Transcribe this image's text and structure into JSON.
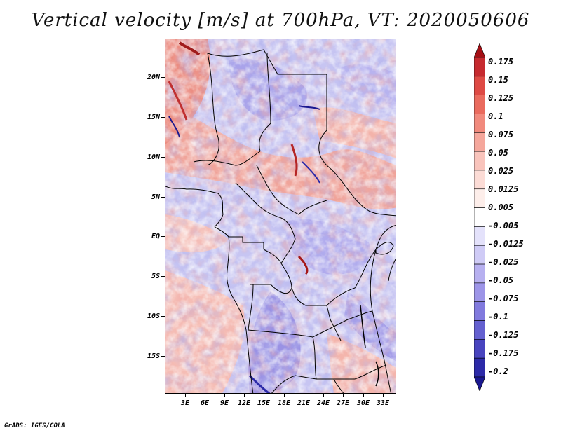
{
  "title": "Vertical velocity [m/s] at 700hPa, VT: 2020050606",
  "footer": "GrADS: IGES/COLA",
  "map": {
    "lat_labels": [
      "20N",
      "15N",
      "10N",
      "5N",
      "EQ",
      "5S",
      "10S",
      "15S"
    ],
    "lon_labels": [
      "3E",
      "6E",
      "9E",
      "12E",
      "15E",
      "18E",
      "21E",
      "24E",
      "27E",
      "30E",
      "33E"
    ],
    "lat_range": [
      -19.5,
      24.5
    ],
    "lon_range": [
      0,
      35
    ]
  },
  "colorbar": {
    "labels": [
      "0.175",
      "0.15",
      "0.125",
      "0.1",
      "0.075",
      "0.05",
      "0.025",
      "0.0125",
      "0.005",
      "-0.005",
      "-0.0125",
      "-0.025",
      "-0.05",
      "-0.075",
      "-0.1",
      "-0.125",
      "-0.175",
      "-0.2"
    ],
    "colors": [
      "#a50f15",
      "#c62a2f",
      "#de4a44",
      "#ea6b5e",
      "#f18a7d",
      "#f5a79c",
      "#f9c4bc",
      "#fcdcd6",
      "#fdeeea",
      "#ffffff",
      "#e4e2fb",
      "#cfcbf6",
      "#b7b0f0",
      "#9d95e8",
      "#817ade",
      "#6460d0",
      "#4844bf",
      "#2c2aa8",
      "#1a1890"
    ]
  }
}
